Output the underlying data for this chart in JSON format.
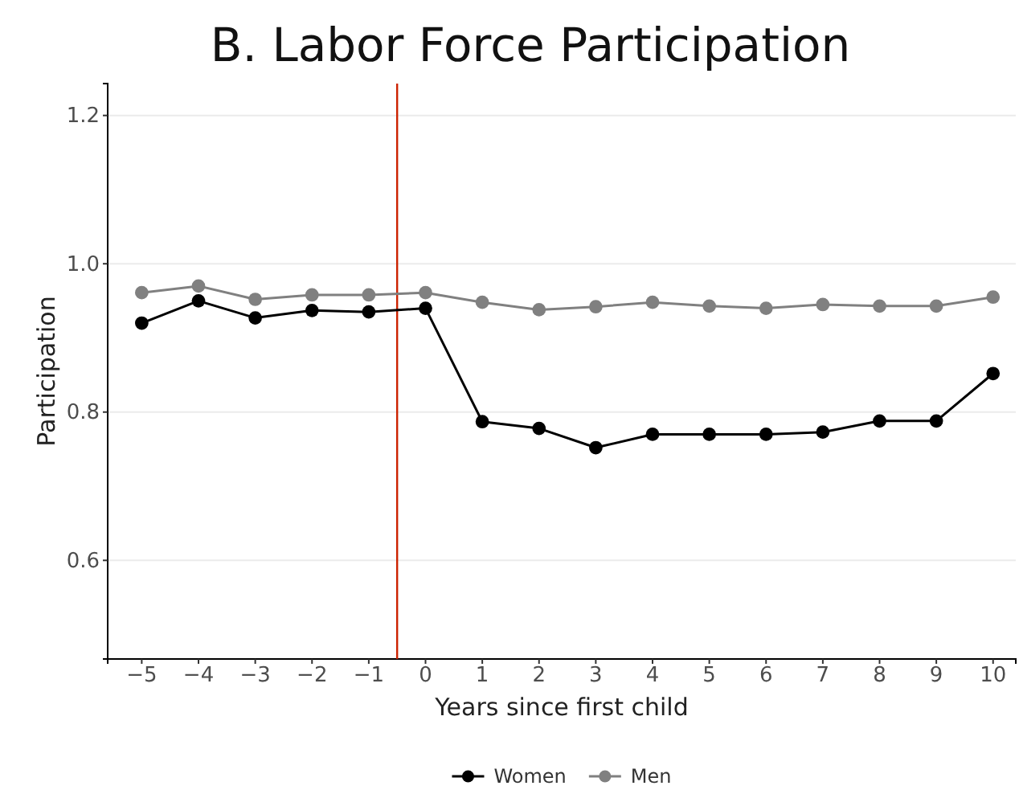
{
  "chart_data": {
    "type": "line",
    "title": "B. Labor Force Participation",
    "xlabel": "Years since first child",
    "ylabel": "Participation",
    "x": [
      -5,
      -4,
      -3,
      -2,
      -1,
      0,
      1,
      2,
      3,
      4,
      5,
      6,
      7,
      8,
      9,
      10
    ],
    "series": [
      {
        "name": "Women",
        "color": "#000000",
        "values": [
          0.92,
          0.95,
          0.927,
          0.937,
          0.935,
          0.94,
          0.787,
          0.778,
          0.752,
          0.77,
          0.77,
          0.77,
          0.773,
          0.788,
          0.788,
          0.852
        ]
      },
      {
        "name": "Men",
        "color": "#808080",
        "values": [
          0.961,
          0.97,
          0.952,
          0.958,
          0.958,
          0.961,
          0.948,
          0.938,
          0.942,
          0.948,
          0.943,
          0.94,
          0.945,
          0.943,
          0.943,
          0.955
        ]
      }
    ],
    "xlim": [
      -5.6,
      10.4
    ],
    "xticks": [
      -5,
      -4,
      -3,
      -2,
      -1,
      0,
      1,
      2,
      3,
      4,
      5,
      6,
      7,
      8,
      9,
      10
    ],
    "ylim": [
      0.467,
      1.243
    ],
    "yticks": [
      {
        "value": 0.6,
        "label": "0.6"
      },
      {
        "value": 0.8,
        "label": "0.8"
      },
      {
        "value": 1.0,
        "label": "1.0"
      },
      {
        "value": 1.2,
        "label": "1.2"
      }
    ],
    "ref_lines": [
      {
        "axis": "x",
        "value": -0.5,
        "color": "#cc2200"
      }
    ],
    "grid": "y",
    "legend": "bottom",
    "marker": "circle",
    "line_style": "solid"
  }
}
